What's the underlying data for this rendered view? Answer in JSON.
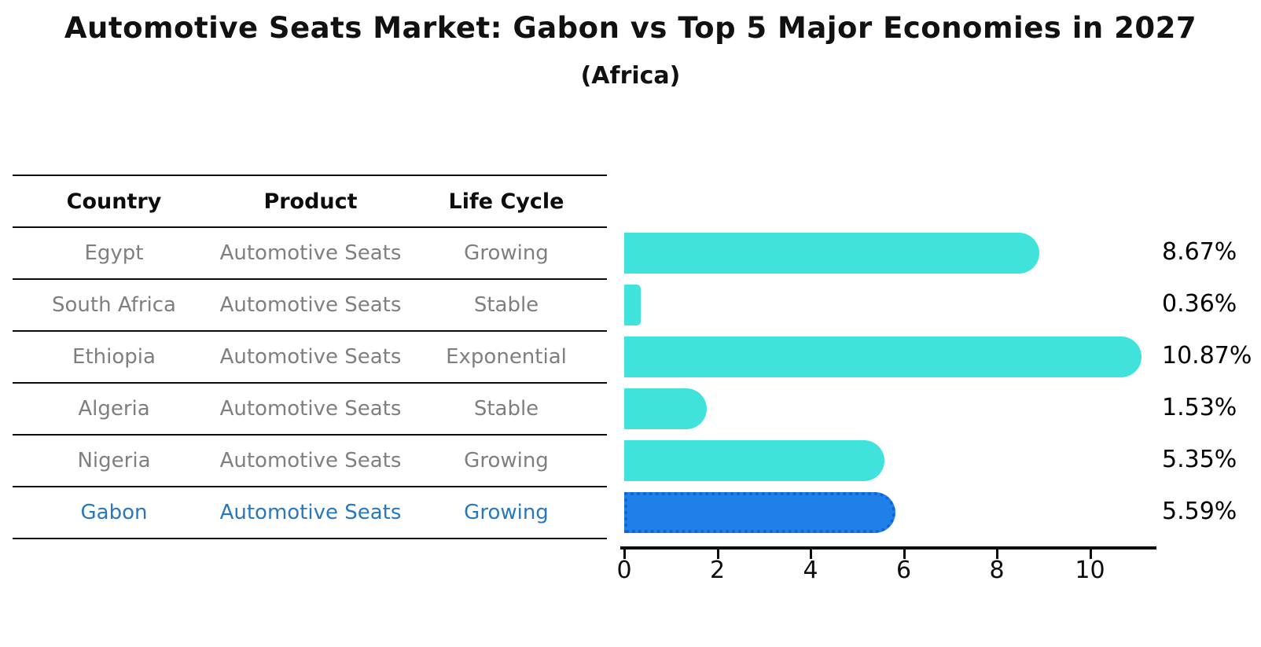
{
  "title": "Automotive Seats Market: Gabon vs Top 5 Major Economies in 2027",
  "subtitle": "(Africa)",
  "table": {
    "headers": [
      "Country",
      "Product",
      "Life Cycle"
    ],
    "rows": [
      {
        "country": "Egypt",
        "product": "Automotive Seats",
        "life_cycle": "Growing",
        "highlight": false
      },
      {
        "country": "South Africa",
        "product": "Automotive Seats",
        "life_cycle": "Stable",
        "highlight": false
      },
      {
        "country": "Ethiopia",
        "product": "Automotive Seats",
        "life_cycle": "Exponential",
        "highlight": false
      },
      {
        "country": "Algeria",
        "product": "Automotive Seats",
        "life_cycle": "Stable",
        "highlight": false
      },
      {
        "country": "Nigeria",
        "product": "Automotive Seats",
        "life_cycle": "Growing",
        "highlight": false
      },
      {
        "country": "Gabon",
        "product": "Automotive Seats",
        "life_cycle": "Growing",
        "highlight": true
      }
    ]
  },
  "chart_data": {
    "type": "bar",
    "orientation": "horizontal",
    "title": "Automotive Seats Market: Gabon vs Top 5 Major Economies in 2027",
    "subtitle": "(Africa)",
    "categories": [
      "Egypt",
      "South Africa",
      "Ethiopia",
      "Algeria",
      "Nigeria",
      "Gabon"
    ],
    "values": [
      8.67,
      0.36,
      10.87,
      1.53,
      5.35,
      5.59
    ],
    "value_labels": [
      "8.67%",
      "0.36%",
      "10.87%",
      "1.53%",
      "5.35%",
      "5.59%"
    ],
    "xlabel": "",
    "ylabel": "",
    "xlim": [
      0,
      11.4
    ],
    "xticks": [
      "0",
      "2",
      "4",
      "6",
      "8",
      "10"
    ],
    "grid": false,
    "legend": "none",
    "bar_color": "#40e3db",
    "highlight_index": 5,
    "highlight_bar_color": "#1e80e8",
    "highlight_border_color": "#1063d8",
    "highlight_text_color": "#2878c0",
    "muted_text_color": "#7f7f7f"
  }
}
